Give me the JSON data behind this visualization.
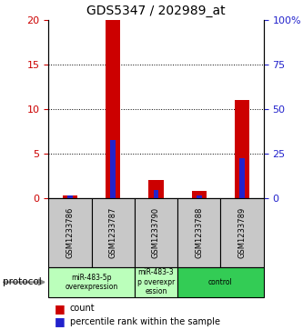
{
  "title": "GDS5347 / 202989_at",
  "samples": [
    "GSM1233786",
    "GSM1233787",
    "GSM1233790",
    "GSM1233788",
    "GSM1233789"
  ],
  "count_values": [
    0.3,
    20,
    2,
    0.8,
    11
  ],
  "percentile_left": [
    1.5,
    32.5,
    4.5,
    1.5,
    22.5
  ],
  "ylim_left": [
    0,
    20
  ],
  "ylim_right": [
    0,
    100
  ],
  "yticks_left": [
    0,
    5,
    10,
    15,
    20
  ],
  "yticks_right": [
    0,
    25,
    50,
    75,
    100
  ],
  "yticklabels_left": [
    "0",
    "5",
    "10",
    "15",
    "20"
  ],
  "yticklabels_right": [
    "0",
    "25",
    "50",
    "75",
    "100%"
  ],
  "red_color": "#cc0000",
  "blue_color": "#2222cc",
  "sample_box_color": "#c8c8c8",
  "proto_light_green": "#bbffbb",
  "proto_green": "#33cc55",
  "title_fontsize": 10,
  "proto_groups": [
    {
      "start": 0,
      "end": 2,
      "color": "#bbffbb",
      "label": "miR-483-5p\noverexpression"
    },
    {
      "start": 2,
      "end": 3,
      "color": "#bbffbb",
      "label": "miR-483-3\np overexpr\nession"
    },
    {
      "start": 3,
      "end": 5,
      "color": "#33cc55",
      "label": "control"
    }
  ],
  "legend_count_label": "count",
  "legend_percentile_label": "percentile rank within the sample"
}
